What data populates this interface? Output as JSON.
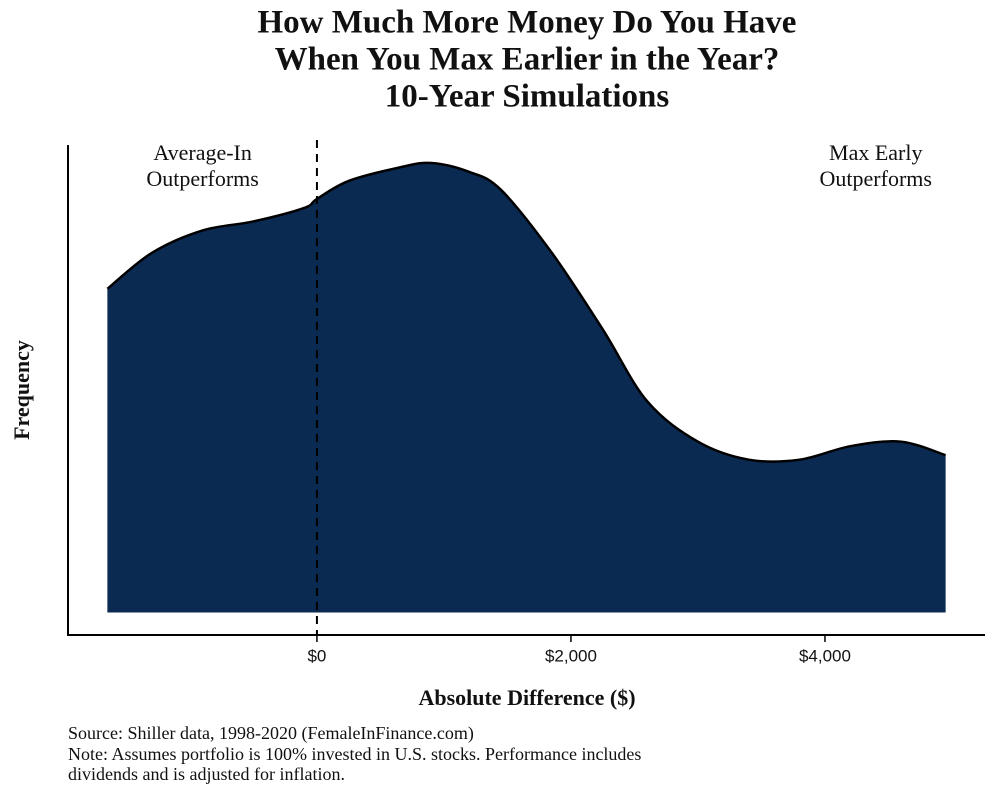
{
  "chart_data": {
    "type": "density",
    "title": [
      "How Much More Money Do You Have",
      "When You Max Earlier in the Year?",
      "10-Year Simulations"
    ],
    "x_label": "Absolute Difference ($)",
    "y_label": "Frequency",
    "x": [
      -1650,
      -1300,
      -900,
      -500,
      -100,
      0,
      250,
      650,
      900,
      1200,
      1450,
      1850,
      2250,
      2600,
      3000,
      3400,
      3800,
      4200,
      4600,
      4950
    ],
    "values": [
      0.72,
      0.8,
      0.85,
      0.87,
      0.9,
      0.92,
      0.96,
      0.99,
      1.0,
      0.98,
      0.94,
      0.8,
      0.63,
      0.47,
      0.38,
      0.34,
      0.34,
      0.37,
      0.38,
      0.35
    ],
    "color": "#0b2a52",
    "xlim": [
      -1960,
      5260
    ],
    "ylim": [
      -0.05,
      1.04
    ],
    "xticks": [
      {
        "value": 0,
        "label": "$0"
      },
      {
        "value": 2000,
        "label": "$2,000"
      },
      {
        "value": 4000,
        "label": "$4,000"
      }
    ],
    "vline": 0,
    "annotations": [
      {
        "lines": [
          "Average-In",
          "Outperforms"
        ],
        "x": -900
      },
      {
        "lines": [
          "Max Early",
          "Outperforms"
        ],
        "x": 4400
      }
    ],
    "notes": [
      "Source: Shiller data, 1998-2020 (FemaleInFinance.com)",
      "Note: Assumes portfolio is 100% invested in U.S. stocks. Performance includes",
      "dividends and is adjusted for inflation."
    ]
  }
}
